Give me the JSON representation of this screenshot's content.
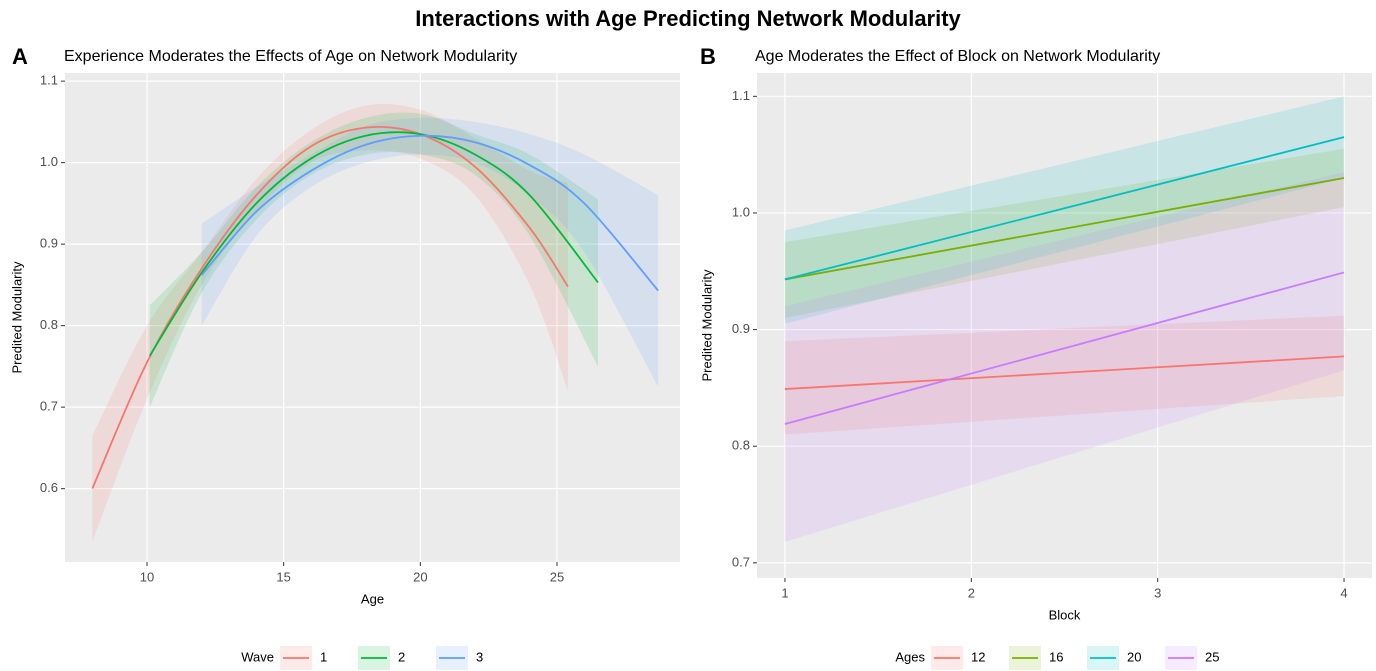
{
  "title": "Interactions with Age Predicting Network Modularity",
  "chart_data": [
    {
      "type": "line",
      "panel_label": "A",
      "title": "Experience Moderates the Effects of Age on Network Modularity",
      "x_label": "Age",
      "y_label": "Predited Modularity",
      "xlim": [
        7.0,
        29.5
      ],
      "ylim": [
        0.51,
        1.11
      ],
      "xticks": [
        10,
        15,
        20,
        25
      ],
      "yticks": [
        0.6,
        0.7,
        0.8,
        0.9,
        {
          "value": 1,
          "label": "1.0"
        },
        1.1
      ],
      "grid": true,
      "legend_title": "Wave",
      "legend_position": "bottom",
      "series": [
        {
          "name": "1",
          "color": "#F8766D",
          "x": [
            8,
            10,
            12,
            14,
            16,
            18,
            20,
            22,
            24,
            25.4
          ],
          "values": [
            0.6,
            0.755,
            0.87,
            0.96,
            1.02,
            1.043,
            1.035,
            0.995,
            0.92,
            0.848
          ],
          "lower": [
            0.535,
            0.71,
            0.85,
            0.94,
            1.0,
            1.015,
            1.005,
            0.96,
            0.85,
            0.72
          ],
          "upper": [
            0.665,
            0.8,
            0.89,
            0.98,
            1.04,
            1.07,
            1.065,
            1.03,
            0.99,
            0.975
          ]
        },
        {
          "name": "2",
          "color": "#00BA38",
          "x": [
            10.1,
            12,
            14,
            16,
            18,
            20,
            22,
            24,
            26.5
          ],
          "values": [
            0.763,
            0.865,
            0.95,
            1.005,
            1.033,
            1.035,
            1.01,
            0.96,
            0.853
          ],
          "lower": [
            0.7,
            0.84,
            0.93,
            0.985,
            1.01,
            1.01,
            0.985,
            0.91,
            0.75
          ],
          "upper": [
            0.825,
            0.89,
            0.97,
            1.025,
            1.055,
            1.06,
            1.035,
            1.01,
            0.955
          ]
        },
        {
          "name": "3",
          "color": "#619CFF",
          "x": [
            12,
            14,
            16,
            18,
            20,
            22,
            24,
            26,
            28.7
          ],
          "values": [
            0.862,
            0.94,
            0.99,
            1.022,
            1.033,
            1.025,
            0.997,
            0.95,
            0.843
          ],
          "lower": [
            0.8,
            0.91,
            0.97,
            1.0,
            1.01,
            1.0,
            0.96,
            0.89,
            0.725
          ],
          "upper": [
            0.925,
            0.97,
            1.01,
            1.045,
            1.055,
            1.05,
            1.035,
            1.01,
            0.96
          ]
        }
      ]
    },
    {
      "type": "line",
      "panel_label": "B",
      "title": "Age Moderates the Effect of Block on Network Modularity",
      "x_label": "Block",
      "y_label": "Predited Modularity",
      "xlim": [
        0.85,
        4.15
      ],
      "ylim": [
        0.687,
        1.12
      ],
      "xticks": [
        1,
        2,
        3,
        4
      ],
      "yticks": [
        0.7,
        0.8,
        0.9,
        {
          "value": 1,
          "label": "1.0"
        },
        1.1
      ],
      "grid": true,
      "legend_title": "Ages",
      "legend_position": "bottom",
      "series": [
        {
          "name": "12",
          "color": "#F8766D",
          "x": [
            1,
            4
          ],
          "values": [
            0.849,
            0.877
          ],
          "lower": [
            0.81,
            0.843
          ],
          "upper": [
            0.89,
            0.912
          ]
        },
        {
          "name": "16",
          "color": "#7CAE00",
          "x": [
            1,
            4
          ],
          "values": [
            0.943,
            1.03
          ],
          "lower": [
            0.91,
            1.005
          ],
          "upper": [
            0.975,
            1.055
          ]
        },
        {
          "name": "20",
          "color": "#00BFC4",
          "x": [
            1,
            4
          ],
          "values": [
            0.943,
            1.065
          ],
          "lower": [
            0.905,
            1.03
          ],
          "upper": [
            0.985,
            1.1
          ]
        },
        {
          "name": "25",
          "color": "#C77CFF",
          "x": [
            1,
            4
          ],
          "values": [
            0.819,
            0.949
          ],
          "lower": [
            0.718,
            0.865
          ],
          "upper": [
            0.92,
            1.035
          ]
        }
      ]
    }
  ]
}
